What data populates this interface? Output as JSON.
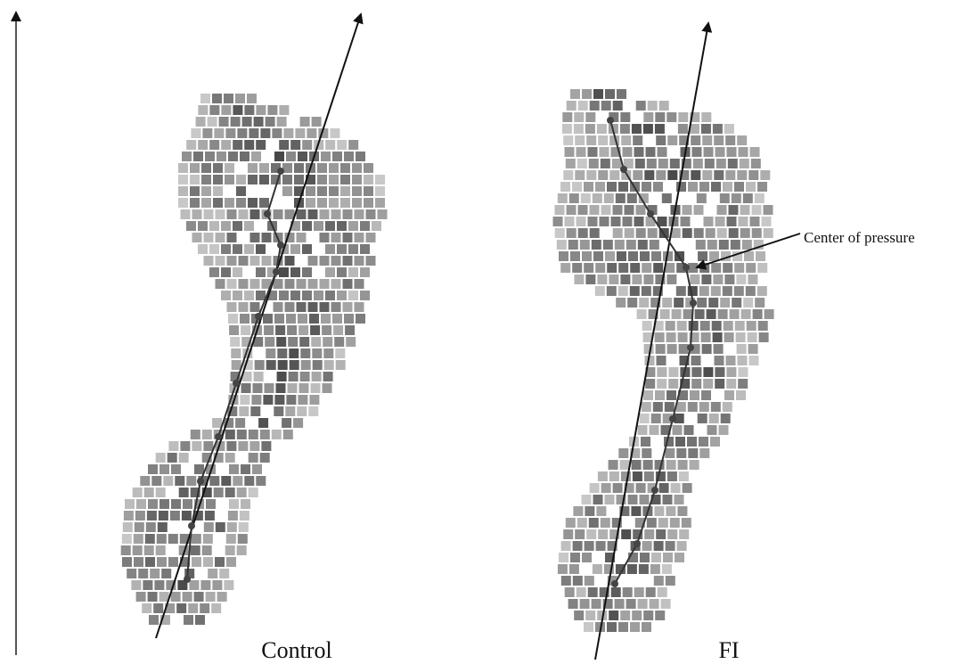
{
  "panels": [
    {
      "label": "Control"
    },
    {
      "label": "FI"
    }
  ],
  "annotation": "Center of pressure"
}
